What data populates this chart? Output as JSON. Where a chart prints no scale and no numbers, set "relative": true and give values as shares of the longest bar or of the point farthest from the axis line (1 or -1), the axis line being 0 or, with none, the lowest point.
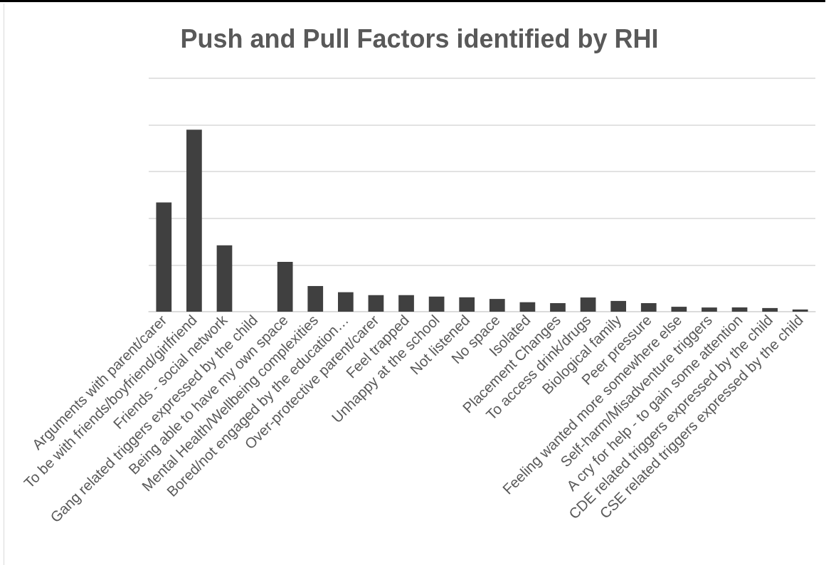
{
  "chart_data": {
    "type": "bar",
    "title": "Push and Pull Factors identified by RHI",
    "categories": [
      "Arguments with parent/carer",
      "To be with friends/boyfriend/girlfriend",
      "Friends - social network",
      "Gang related triggers expressed by the child",
      "Being able to have my own space",
      "Mental Health/Wellbeing complexities",
      "Bored/not engaged by the education…",
      "Over-protective parent/carer",
      "Feel trapped",
      "Unhappy at the school",
      "Not listened",
      "No space",
      "Isolated",
      "Placement Changes",
      "To access drink/drugs",
      "Biological family",
      "Peer pressure",
      "Feeling wanted more somewhere else",
      "Self-harm/Misadventure triggers",
      "A cry for help - to gain some attention",
      "CDE related triggers expressed by the child",
      "CSE related triggers expressed by the child"
    ],
    "values": [
      0.6,
      1,
      0.365,
      0,
      0.274,
      0.141,
      0.107,
      0.091,
      0.091,
      0.083,
      0.079,
      0.07,
      0.052,
      0.047,
      0.078,
      0.059,
      0.047,
      0.027,
      0.023,
      0.023,
      0.02,
      0.012
    ],
    "color": "#404040",
    "relative": true,
    "grid": "y"
  }
}
